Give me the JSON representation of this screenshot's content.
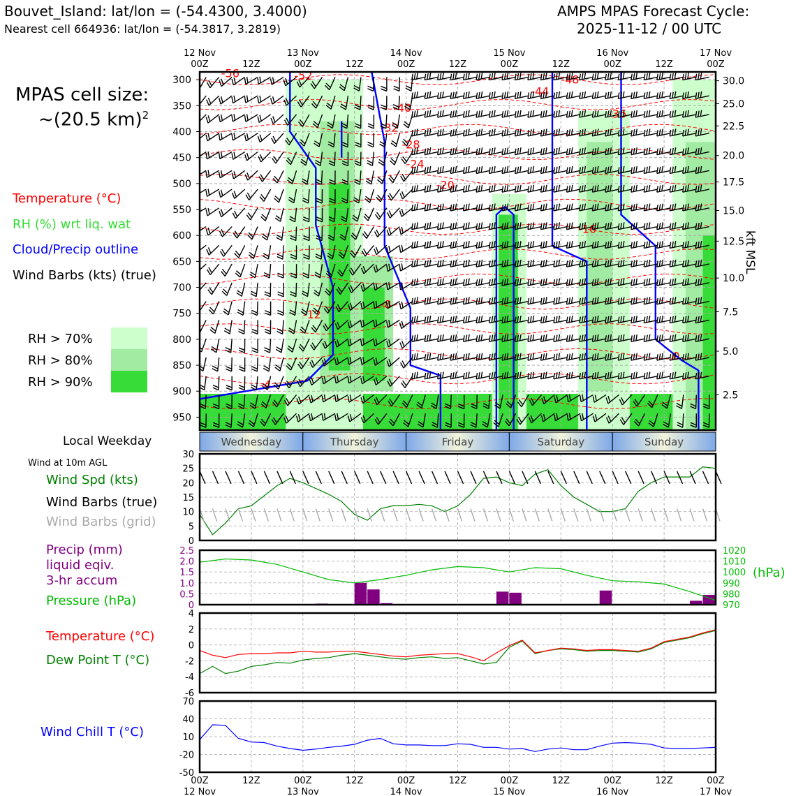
{
  "header": {
    "station_line": "Bouvet_Island: lat/lon = (-54.4300, 3.4000)",
    "cell_line": "Nearest cell 664936: lat/lon = (-54.3817, 3.2819)",
    "product_line1": "AMPS MPAS Forecast Cycle:",
    "product_line2": "2025-11-12 / 00 UTC"
  },
  "cell_size": {
    "line1": "MPAS cell size:",
    "line2": "~(20.5 km)",
    "sup": "2"
  },
  "legend": {
    "temperature": "Temperature (°C)",
    "rh": "RH (%) wrt liq. wat",
    "cloud": "Cloud/Precip outline",
    "barbs": "Wind Barbs (kts) (true)",
    "rh_levels": [
      "RH > 70%",
      "RH > 80%",
      "RH > 90%"
    ],
    "rh_colors": [
      "#ccffcc",
      "#a2eba2",
      "#38dc38"
    ]
  },
  "colors": {
    "temperature": "#ff0000",
    "rh": "#22cc22",
    "cloud": "#0000ff",
    "dewpoint": "#008000",
    "precip": "#800080",
    "pressure": "#00bb00",
    "windspd": "#008000",
    "windchill": "#0000ff",
    "grid_barbs": "#aaaaaa"
  },
  "time_axis": {
    "top_labels": [
      {
        "date": "12 Nov",
        "hour": "00Z"
      },
      {
        "date": "",
        "hour": "12Z"
      },
      {
        "date": "13 Nov",
        "hour": "00Z"
      },
      {
        "date": "",
        "hour": "12Z"
      },
      {
        "date": "14 Nov",
        "hour": "00Z"
      },
      {
        "date": "",
        "hour": "12Z"
      },
      {
        "date": "15 Nov",
        "hour": "00Z"
      },
      {
        "date": "",
        "hour": "12Z"
      },
      {
        "date": "16 Nov",
        "hour": "00Z"
      },
      {
        "date": "",
        "hour": "12Z"
      },
      {
        "date": "17 Nov",
        "hour": "00Z"
      }
    ]
  },
  "weekday": {
    "label": "Local Weekday",
    "days": [
      "Wednesday",
      "Thursday",
      "Friday",
      "Saturday",
      "Sunday"
    ]
  },
  "chart_data": [
    {
      "id": "cross-section",
      "type": "heatmap",
      "title": "",
      "x_range_hours": [
        0,
        120
      ],
      "pressure_ticks_hpa": [
        300,
        350,
        400,
        450,
        500,
        550,
        600,
        650,
        700,
        750,
        800,
        850,
        900,
        950
      ],
      "ylim_hpa": [
        975,
        285
      ],
      "height_ticks_kft": [
        "30.0",
        "25.0",
        "22.5",
        "20.0",
        "17.5",
        "15.0",
        "12.5",
        "10.0",
        "7.5",
        "5.0",
        "2.5"
      ],
      "height_tick_pressures_hpa": [
        302,
        346,
        389,
        446,
        497,
        552,
        611,
        682,
        747,
        823,
        907
      ],
      "right_axis_label": "kft MSL",
      "temperature_contour_labels": [
        "-56",
        "-52",
        "-48",
        "-44",
        "-40",
        "-36",
        "-32",
        "-28",
        "-24",
        "-20",
        "-16",
        "-12",
        "-8",
        "-4",
        "0"
      ],
      "rh_levels_pct": [
        70,
        80,
        90
      ],
      "wind_barbs": "true"
    },
    {
      "id": "wind",
      "type": "line",
      "heading": "Wind at 10m AGL",
      "series_labels": [
        "Wind Spd (kts)",
        "Wind Barbs (true)",
        "Wind Barbs (grid)"
      ],
      "yticks": [
        "30",
        "25",
        "20",
        "15",
        "10",
        "5",
        "0"
      ],
      "ylim": [
        0,
        30
      ],
      "x_hours": [
        0,
        3,
        6,
        9,
        12,
        15,
        18,
        21,
        24,
        27,
        30,
        33,
        36,
        39,
        42,
        45,
        48,
        51,
        54,
        57,
        60,
        63,
        66,
        69,
        72,
        75,
        78,
        81,
        84,
        87,
        90,
        93,
        96,
        99,
        102,
        105,
        108,
        111,
        114,
        117,
        120
      ],
      "wind_speed_kts": [
        9,
        2,
        6,
        11,
        12,
        15.5,
        19,
        21.5,
        20,
        18,
        16,
        13.5,
        9,
        7,
        11,
        12,
        12,
        12.5,
        12,
        10,
        12,
        16,
        21.5,
        22,
        20,
        19,
        23,
        24.5,
        19,
        15,
        12.5,
        10,
        10,
        11,
        17,
        20,
        22,
        22,
        22,
        25.5,
        25
      ]
    },
    {
      "id": "precip-pressure",
      "type": "bar",
      "series_labels": [
        "Precip (mm)",
        "liquid eqiv.",
        "3-hr accum",
        "Pressure (hPa)"
      ],
      "yticks_precip": [
        "2.5",
        "2.0",
        "1.5",
        "1.0",
        "0.5",
        "0"
      ],
      "ylim_precip": [
        0,
        2.5
      ],
      "yticks_pressure": [
        "1020",
        "1010",
        "1000",
        "990",
        "980",
        "970"
      ],
      "ylim_pressure": [
        970,
        1020
      ],
      "right_unit": "(hPa)",
      "precip_bars": [
        {
          "x": 28.5,
          "v": 0.05
        },
        {
          "x": 37.5,
          "v": 1.0
        },
        {
          "x": 40.5,
          "v": 0.7
        },
        {
          "x": 43.5,
          "v": 0.07
        },
        {
          "x": 70.5,
          "v": 0.6
        },
        {
          "x": 73.5,
          "v": 0.55
        },
        {
          "x": 94.5,
          "v": 0.65
        },
        {
          "x": 115.5,
          "v": 0.18
        },
        {
          "x": 118.5,
          "v": 0.45
        }
      ],
      "x_hours": [
        0,
        6,
        12,
        18,
        24,
        30,
        36,
        42,
        48,
        54,
        60,
        66,
        72,
        78,
        84,
        90,
        96,
        102,
        108,
        114,
        120
      ],
      "pressure_hpa": [
        1009,
        1012,
        1011,
        1007,
        1000,
        993,
        990,
        993,
        997,
        1002,
        1005,
        1004,
        1000,
        1004,
        1003,
        997,
        992,
        991,
        989,
        982,
        974
      ]
    },
    {
      "id": "temperature",
      "type": "line",
      "series_labels": [
        "Temperature (°C)",
        "Dew Point T (°C)"
      ],
      "yticks": [
        "4",
        "2",
        "0",
        "-2",
        "-4",
        "-6"
      ],
      "ylim": [
        -6,
        4
      ],
      "x_hours": [
        0,
        3,
        6,
        9,
        12,
        15,
        18,
        21,
        24,
        27,
        30,
        33,
        36,
        39,
        42,
        45,
        48,
        51,
        54,
        57,
        60,
        63,
        66,
        69,
        72,
        75,
        78,
        81,
        84,
        87,
        90,
        93,
        96,
        99,
        102,
        105,
        108,
        111,
        114,
        117,
        120
      ],
      "temperature": [
        -0.7,
        -1.3,
        -1.6,
        -1.2,
        -1.1,
        -1.1,
        -1.0,
        -1.0,
        -0.8,
        -0.9,
        -0.9,
        -0.8,
        -0.8,
        -1.0,
        -1.2,
        -1.4,
        -1.5,
        -1.3,
        -1.2,
        -1.1,
        -1.1,
        -1.5,
        -2.0,
        -1.0,
        -0.1,
        0.6,
        -1.0,
        -0.7,
        -0.4,
        -0.5,
        -0.7,
        -0.6,
        -0.6,
        -0.7,
        -0.8,
        -0.4,
        0.4,
        0.7,
        1.0,
        1.5,
        1.9
      ],
      "dewpoint": [
        -3.6,
        -2.7,
        -3.6,
        -3.3,
        -2.7,
        -2.5,
        -2.2,
        -2.3,
        -1.9,
        -1.7,
        -1.6,
        -1.3,
        -1.1,
        -1.3,
        -1.5,
        -1.7,
        -1.8,
        -1.6,
        -1.5,
        -1.7,
        -1.6,
        -2.0,
        -2.4,
        -2.2,
        -0.3,
        0.5,
        -1.1,
        -0.7,
        -0.5,
        -0.6,
        -0.8,
        -0.7,
        -0.7,
        -0.8,
        -0.9,
        -0.5,
        0.3,
        0.6,
        0.9,
        1.4,
        1.8
      ]
    },
    {
      "id": "wind-chill",
      "type": "line",
      "series_labels": [
        "Wind Chill T (°C)"
      ],
      "yticks": [
        "70",
        "40",
        "10",
        "-20",
        "-50"
      ],
      "ylim": [
        -50,
        70
      ],
      "x_hours": [
        0,
        3,
        6,
        9,
        12,
        15,
        18,
        21,
        24,
        27,
        30,
        33,
        36,
        39,
        42,
        45,
        48,
        51,
        54,
        57,
        60,
        63,
        66,
        69,
        72,
        75,
        78,
        81,
        84,
        87,
        90,
        93,
        96,
        99,
        102,
        105,
        108,
        111,
        114,
        117,
        120
      ],
      "wind_chill": [
        5,
        30,
        29,
        7,
        1,
        0,
        -6,
        -10,
        -13,
        -11,
        -8,
        -6,
        -3,
        4,
        7,
        -2,
        -4,
        -4,
        -5,
        -5,
        -2,
        -3,
        -8,
        -8,
        -11,
        -10,
        -15,
        -11,
        -9,
        -12,
        -12,
        -6,
        -1,
        0,
        -1,
        -3,
        -9,
        -10,
        -10,
        -9,
        -8
      ]
    }
  ],
  "bottom_axis": {
    "hours": [
      "00Z",
      "12Z",
      "00Z",
      "12Z",
      "00Z",
      "12Z",
      "00Z",
      "12Z",
      "00Z",
      "12Z",
      "00Z"
    ],
    "dates": [
      "12 Nov",
      "13 Nov",
      "14 Nov",
      "15 Nov",
      "16 Nov",
      "17 Nov"
    ]
  }
}
